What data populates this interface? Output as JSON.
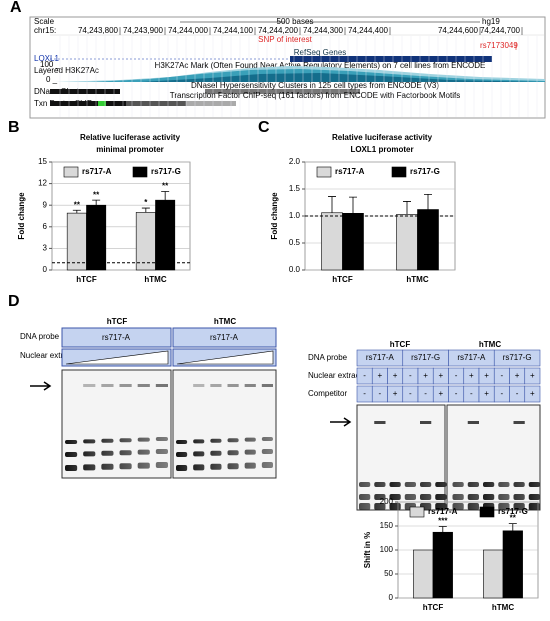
{
  "panels": {
    "a": "A",
    "b": "B",
    "c": "C",
    "d": "D"
  },
  "browser": {
    "scale": "Scale",
    "scale_bar": "500 bases",
    "assembly": "hg19",
    "chrom": "chr15:",
    "coordinates": [
      "74,243,800",
      "74,243,900",
      "74,244,000",
      "74,244,100",
      "74,244,200",
      "74,244,300",
      "74,244,400",
      "74,244,600",
      "74,244,700"
    ],
    "snp_label": "SNP of interest",
    "snp": "rs7173049",
    "refseq": "RefSeq Genes",
    "gene": "LOXL1",
    "layered": "Layered H3K27Ac",
    "h100": "100 _",
    "h0": "0 _",
    "h3k_desc": "H3K27Ac Mark (Often Found Near Active Regulatory Elements) on 7 cell lines from ENCODE",
    "dnase": "DNase Clusters",
    "dnase_desc": "DNaseI Hypersensitivity Clusters in 125 cell types from ENCODE (V3)",
    "tf": "Txn Factor ChIP",
    "tf_desc": "Transcription Factor ChIP-seq (161 factors) from ENCODE with Factorbook Motifs"
  },
  "gel_left": {
    "headers": [
      "hTCF",
      "hTMC"
    ],
    "probe_label": "DNA probe",
    "probes": [
      "rs717-A",
      "rs717-A"
    ],
    "extract_label": "Nuclear extract"
  },
  "gel_right": {
    "headers": [
      "hTCF",
      "hTMC"
    ],
    "rows": [
      {
        "label": "DNA probe",
        "cells": [
          "rs717-A",
          "rs717-G",
          "rs717-A",
          "rs717-G"
        ]
      },
      {
        "label": "Nuclear extract",
        "cells": [
          "-",
          "+",
          "+",
          "-",
          "+",
          "+",
          "-",
          "+",
          "+",
          "-",
          "+",
          "+"
        ]
      },
      {
        "label": "Competitor",
        "cells": [
          "-",
          "-",
          "+",
          "-",
          "-",
          "+",
          "-",
          "-",
          "+",
          "-",
          "-",
          "+"
        ]
      }
    ]
  },
  "chart_data": [
    {
      "type": "bar",
      "title": "Relative luciferase activity",
      "subtitle": "minimal promoter",
      "y_label": "Fold change",
      "categories": [
        "hTCF",
        "hTMC"
      ],
      "ylim": [
        0,
        15
      ],
      "yticks": [
        0,
        3,
        6,
        9,
        12,
        15
      ],
      "grid": true,
      "reference_line": 1,
      "legend": "top",
      "series": [
        {
          "name": "rs717-A",
          "color": "#d9d9d9",
          "values": [
            7.9,
            8.0
          ],
          "errors": [
            0.4,
            0.6
          ],
          "significance": [
            "**",
            "*"
          ]
        },
        {
          "name": "rs717-G",
          "color": "#000000",
          "values": [
            9.0,
            9.7
          ],
          "errors": [
            0.7,
            1.2
          ],
          "significance": [
            "**",
            "**"
          ]
        }
      ]
    },
    {
      "type": "bar",
      "title": "Relative luciferase activity",
      "subtitle": "LOXL1 promoter",
      "y_label": "Fold change",
      "categories": [
        "hTCF",
        "hTMC"
      ],
      "ylim": [
        0,
        2
      ],
      "yticks": [
        {
          "value": 0,
          "label": "0.0"
        },
        {
          "value": 0.5,
          "label": "0.5"
        },
        {
          "value": 1,
          "label": "1.0"
        },
        {
          "value": 1.5,
          "label": "1.5"
        },
        {
          "value": 2,
          "label": "2.0"
        }
      ],
      "grid": true,
      "reference_line": 1,
      "legend": "top",
      "series": [
        {
          "name": "rs717-A",
          "color": "#d9d9d9",
          "values": [
            1.06,
            1.03
          ],
          "errors": [
            0.3,
            0.24
          ]
        },
        {
          "name": "rs717-G",
          "color": "#000000",
          "values": [
            1.05,
            1.12
          ],
          "errors": [
            0.3,
            0.28
          ]
        }
      ]
    },
    {
      "type": "bar",
      "y_label": "Shift in %",
      "categories": [
        "hTCF",
        "hTMC"
      ],
      "ylim": [
        0,
        200
      ],
      "yticks": [
        0,
        50,
        100,
        150,
        200
      ],
      "grid": true,
      "legend": "top",
      "series": [
        {
          "name": "rs717-A",
          "color": "#d9d9d9",
          "values": [
            100,
            100
          ]
        },
        {
          "name": "rs717-G",
          "color": "#000000",
          "values": [
            137,
            140
          ],
          "errors": [
            12,
            15
          ],
          "significance": [
            "***",
            "**"
          ]
        }
      ]
    }
  ]
}
